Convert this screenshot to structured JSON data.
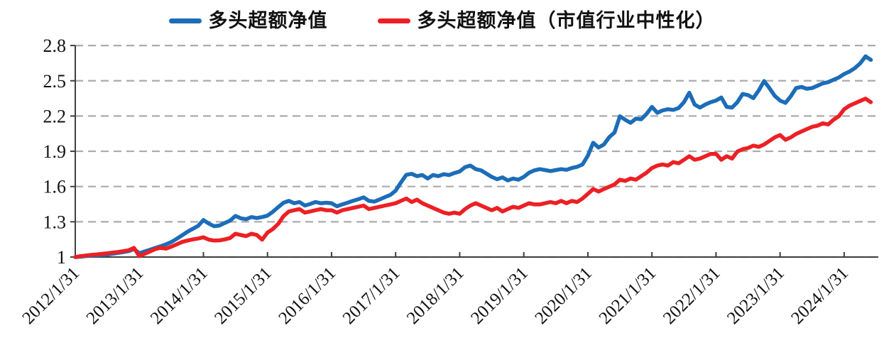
{
  "chart_data": {
    "type": "line",
    "title": "",
    "xlabel": "",
    "ylabel": "",
    "ylim": [
      1,
      2.8
    ],
    "y_ticks": [
      1,
      1.3,
      1.6,
      1.9,
      2.2,
      2.5,
      2.8
    ],
    "y_tick_labels": [
      "1",
      "1.3",
      "1.6",
      "1.9",
      "2.2",
      "2.5",
      "2.8"
    ],
    "x_tick_labels": [
      "2012/1/31",
      "2013/1/31",
      "2014/1/31",
      "2015/1/31",
      "2016/1/31",
      "2017/1/31",
      "2018/1/31",
      "2019/1/31",
      "2020/1/31",
      "2021/1/31",
      "2022/1/31",
      "2023/1/31",
      "2024/1/31"
    ],
    "x_frequency": "monthly",
    "x_start": "2012/1",
    "x_end": "2024/6",
    "grid": "horizontal-dashed",
    "legend_position": "top-center",
    "axis_color": "#3f3f3f",
    "gridline_color": "#ababab",
    "series": [
      {
        "name": "多头超额净值",
        "color": "#1c6db8",
        "values": [
          1.0,
          1.003,
          1.008,
          1.012,
          1.015,
          1.018,
          1.022,
          1.028,
          1.035,
          1.042,
          1.05,
          1.068,
          1.032,
          1.048,
          1.062,
          1.078,
          1.092,
          1.108,
          1.128,
          1.155,
          1.185,
          1.215,
          1.24,
          1.265,
          1.315,
          1.285,
          1.262,
          1.268,
          1.29,
          1.31,
          1.35,
          1.33,
          1.322,
          1.34,
          1.332,
          1.34,
          1.352,
          1.385,
          1.425,
          1.462,
          1.478,
          1.458,
          1.468,
          1.438,
          1.452,
          1.468,
          1.458,
          1.462,
          1.458,
          1.432,
          1.448,
          1.462,
          1.478,
          1.492,
          1.508,
          1.478,
          1.472,
          1.49,
          1.51,
          1.528,
          1.565,
          1.635,
          1.7,
          1.708,
          1.688,
          1.698,
          1.668,
          1.698,
          1.688,
          1.705,
          1.698,
          1.715,
          1.728,
          1.765,
          1.778,
          1.748,
          1.738,
          1.71,
          1.682,
          1.662,
          1.678,
          1.652,
          1.668,
          1.658,
          1.682,
          1.718,
          1.738,
          1.748,
          1.74,
          1.732,
          1.74,
          1.748,
          1.742,
          1.758,
          1.768,
          1.788,
          1.862,
          1.972,
          1.932,
          1.958,
          2.02,
          2.06,
          2.198,
          2.168,
          2.142,
          2.178,
          2.172,
          2.218,
          2.278,
          2.228,
          2.248,
          2.258,
          2.252,
          2.268,
          2.318,
          2.398,
          2.298,
          2.272,
          2.298,
          2.318,
          2.332,
          2.358,
          2.278,
          2.272,
          2.318,
          2.388,
          2.378,
          2.352,
          2.418,
          2.498,
          2.438,
          2.372,
          2.332,
          2.312,
          2.368,
          2.438,
          2.448,
          2.432,
          2.438,
          2.458,
          2.478,
          2.488,
          2.508,
          2.528,
          2.558,
          2.578,
          2.608,
          2.648,
          2.708,
          2.678
        ]
      },
      {
        "name": "多头超额净值（市值行业中性化）",
        "color": "#ec2024",
        "values": [
          1.0,
          1.008,
          1.013,
          1.018,
          1.022,
          1.027,
          1.032,
          1.038,
          1.043,
          1.05,
          1.058,
          1.078,
          1.008,
          1.028,
          1.048,
          1.068,
          1.078,
          1.072,
          1.088,
          1.108,
          1.128,
          1.14,
          1.15,
          1.158,
          1.168,
          1.148,
          1.14,
          1.142,
          1.15,
          1.162,
          1.198,
          1.188,
          1.178,
          1.198,
          1.188,
          1.148,
          1.208,
          1.238,
          1.282,
          1.348,
          1.388,
          1.398,
          1.408,
          1.378,
          1.388,
          1.398,
          1.408,
          1.398,
          1.398,
          1.378,
          1.398,
          1.408,
          1.418,
          1.428,
          1.438,
          1.408,
          1.418,
          1.428,
          1.438,
          1.448,
          1.458,
          1.478,
          1.498,
          1.468,
          1.488,
          1.458,
          1.438,
          1.418,
          1.398,
          1.378,
          1.368,
          1.378,
          1.368,
          1.408,
          1.438,
          1.458,
          1.438,
          1.418,
          1.398,
          1.418,
          1.388,
          1.408,
          1.428,
          1.418,
          1.438,
          1.458,
          1.448,
          1.448,
          1.458,
          1.468,
          1.458,
          1.478,
          1.458,
          1.478,
          1.468,
          1.498,
          1.538,
          1.578,
          1.558,
          1.578,
          1.598,
          1.618,
          1.658,
          1.648,
          1.668,
          1.658,
          1.688,
          1.718,
          1.758,
          1.778,
          1.788,
          1.778,
          1.808,
          1.798,
          1.828,
          1.858,
          1.828,
          1.838,
          1.858,
          1.878,
          1.878,
          1.828,
          1.858,
          1.838,
          1.898,
          1.918,
          1.928,
          1.948,
          1.938,
          1.958,
          1.988,
          2.018,
          2.038,
          1.998,
          2.018,
          2.048,
          2.068,
          2.088,
          2.108,
          2.118,
          2.138,
          2.128,
          2.168,
          2.198,
          2.258,
          2.288,
          2.308,
          2.328,
          2.348,
          2.318
        ]
      }
    ]
  }
}
